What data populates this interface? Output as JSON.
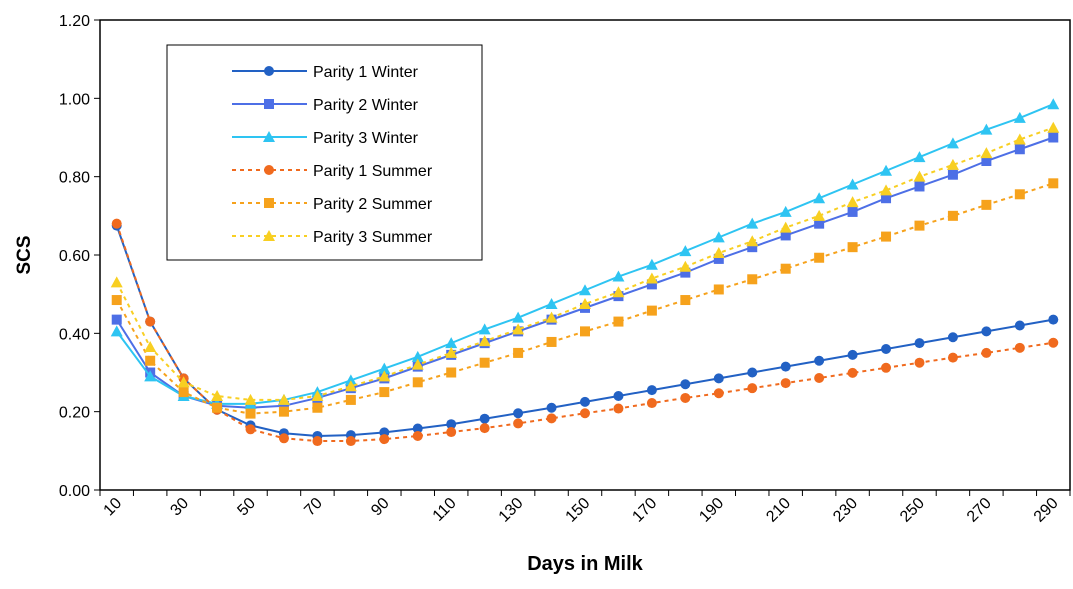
{
  "chart_data": {
    "type": "line",
    "x_label": "Days in Milk",
    "y_label": "SCS",
    "categories": [
      "10",
      null,
      "30",
      null,
      "50",
      null,
      "70",
      null,
      "90",
      null,
      "110",
      null,
      "130",
      null,
      "150",
      null,
      "170",
      null,
      "190",
      null,
      "210",
      null,
      "230",
      null,
      "250",
      null,
      "270",
      null,
      "290"
    ],
    "ylim": [
      0,
      1.2
    ],
    "yticks": [
      {
        "value": 0,
        "label": "0.00"
      },
      {
        "value": 0.2,
        "label": "0.20"
      },
      {
        "value": 0.4,
        "label": "0.40"
      },
      {
        "value": 0.6,
        "label": "0.60"
      },
      {
        "value": 0.8,
        "label": "0.80"
      },
      {
        "value": 1.0,
        "label": "1.00"
      },
      {
        "value": 1.2,
        "label": "1.20"
      }
    ],
    "legend": "upper left",
    "series": [
      {
        "name": "Parity 1 Winter",
        "color": "#2261c4",
        "marker": "circle",
        "dashed": false,
        "values": [
          0.675,
          0.43,
          0.285,
          0.205,
          0.165,
          0.145,
          0.138,
          0.14,
          0.147,
          0.157,
          0.168,
          0.182,
          0.196,
          0.21,
          0.225,
          0.24,
          0.255,
          0.27,
          0.285,
          0.3,
          0.315,
          0.33,
          0.345,
          0.36,
          0.375,
          0.39,
          0.405,
          0.42,
          0.435
        ]
      },
      {
        "name": "Parity 2 Winter",
        "color": "#4d6fe6",
        "marker": "square",
        "dashed": false,
        "values": [
          0.435,
          0.3,
          0.24,
          0.215,
          0.21,
          0.215,
          0.235,
          0.26,
          0.285,
          0.315,
          0.345,
          0.375,
          0.405,
          0.435,
          0.465,
          0.495,
          0.525,
          0.555,
          0.59,
          0.62,
          0.65,
          0.68,
          0.71,
          0.745,
          0.775,
          0.805,
          0.84,
          0.87,
          0.9
        ]
      },
      {
        "name": "Parity 3 Winter",
        "color": "#2ec4f2",
        "marker": "triangle",
        "dashed": false,
        "values": [
          0.405,
          0.29,
          0.24,
          0.22,
          0.22,
          0.23,
          0.25,
          0.28,
          0.31,
          0.34,
          0.375,
          0.41,
          0.44,
          0.475,
          0.51,
          0.545,
          0.575,
          0.61,
          0.645,
          0.68,
          0.71,
          0.745,
          0.78,
          0.815,
          0.85,
          0.885,
          0.92,
          0.95,
          0.985
        ]
      },
      {
        "name": "Parity 1 Summer",
        "color": "#f06a1e",
        "marker": "circle",
        "dashed": true,
        "values": [
          0.68,
          0.43,
          0.285,
          0.205,
          0.155,
          0.132,
          0.125,
          0.125,
          0.13,
          0.138,
          0.148,
          0.158,
          0.17,
          0.183,
          0.196,
          0.208,
          0.222,
          0.235,
          0.247,
          0.26,
          0.273,
          0.286,
          0.299,
          0.312,
          0.325,
          0.338,
          0.35,
          0.363,
          0.376
        ]
      },
      {
        "name": "Parity 2 Summer",
        "color": "#f6a21c",
        "marker": "square",
        "dashed": true,
        "values": [
          0.485,
          0.33,
          0.25,
          0.21,
          0.195,
          0.2,
          0.21,
          0.23,
          0.25,
          0.275,
          0.3,
          0.325,
          0.35,
          0.378,
          0.405,
          0.43,
          0.458,
          0.485,
          0.512,
          0.538,
          0.565,
          0.593,
          0.62,
          0.647,
          0.675,
          0.7,
          0.728,
          0.755,
          0.783
        ]
      },
      {
        "name": "Parity 3 Summer",
        "color": "#f8cf22",
        "marker": "triangle",
        "dashed": true,
        "values": [
          0.53,
          0.365,
          0.275,
          0.24,
          0.23,
          0.23,
          0.24,
          0.265,
          0.29,
          0.32,
          0.35,
          0.38,
          0.41,
          0.44,
          0.475,
          0.505,
          0.54,
          0.57,
          0.605,
          0.635,
          0.67,
          0.7,
          0.735,
          0.765,
          0.8,
          0.83,
          0.86,
          0.895,
          0.925
        ]
      }
    ]
  }
}
